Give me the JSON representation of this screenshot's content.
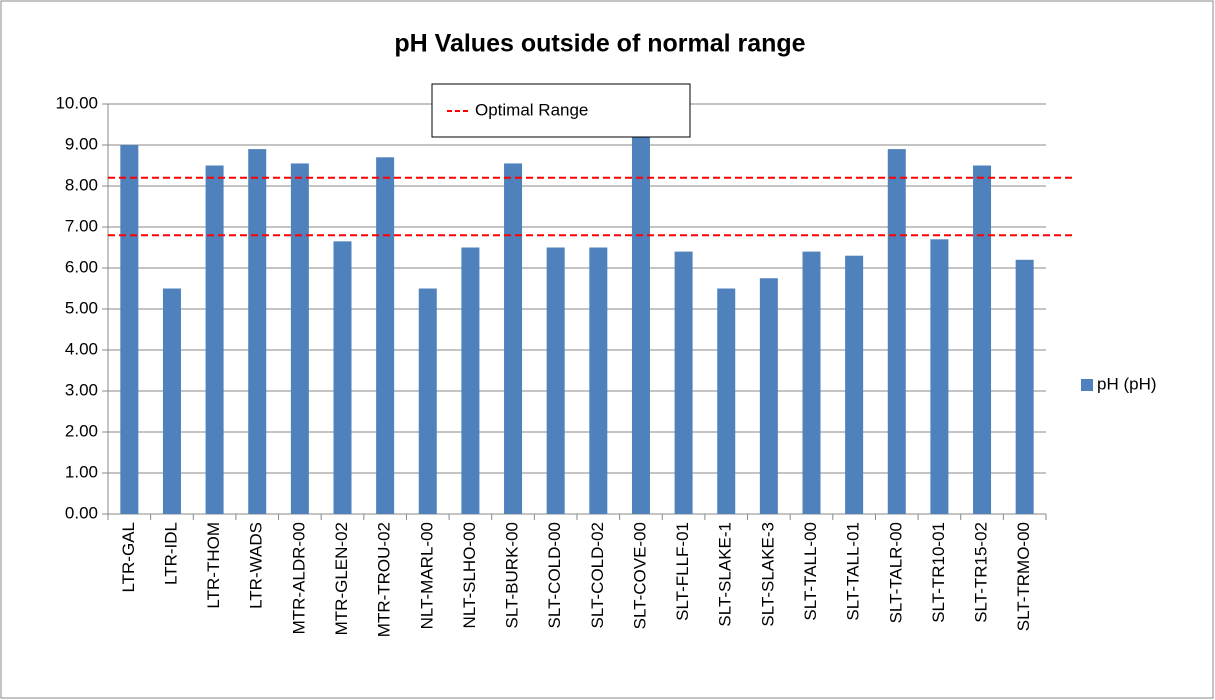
{
  "chart_data": {
    "type": "bar",
    "title": "pH Values outside of normal range",
    "categories": [
      "LTR-GAL",
      "LTR-IDL",
      "LTR-THOM",
      "LTR-WADS",
      "MTR-ALDR-00",
      "MTR-GLEN-02",
      "MTR-TROU-02",
      "NLT-MARL-00",
      "NLT-SLHO-00",
      "SLT-BURK-00",
      "SLT-COLD-00",
      "SLT-COLD-02",
      "SLT-COVE-00",
      "SLT-FLLF-01",
      "SLT-SLAKE-1",
      "SLT-SLAKE-3",
      "SLT-TALL-00",
      "SLT-TALL-01",
      "SLT-TALR-00",
      "SLT-TR10-01",
      "SLT-TR15-02",
      "SLT-TRMO-00"
    ],
    "series": [
      {
        "name": "pH (pH)",
        "color": "#4f81bd",
        "values": [
          9.0,
          5.5,
          8.5,
          8.9,
          8.55,
          6.65,
          8.7,
          5.5,
          6.5,
          8.55,
          6.5,
          6.5,
          9.2,
          6.4,
          5.5,
          5.75,
          6.4,
          6.3,
          8.9,
          6.7,
          8.5,
          6.2
        ]
      }
    ],
    "reference_lines": {
      "name": "Optimal Range",
      "color": "#ff0000",
      "values": [
        6.8,
        8.2
      ]
    },
    "ylim": [
      0,
      10
    ],
    "yticks": [
      {
        "value": 0,
        "label": "0.00"
      },
      {
        "value": 1,
        "label": "1.00"
      },
      {
        "value": 2,
        "label": "2.00"
      },
      {
        "value": 3,
        "label": "3.00"
      },
      {
        "value": 4,
        "label": "4.00"
      },
      {
        "value": 5,
        "label": "5.00"
      },
      {
        "value": 6,
        "label": "6.00"
      },
      {
        "value": 7,
        "label": "7.00"
      },
      {
        "value": 8,
        "label": "8.00"
      },
      {
        "value": 9,
        "label": "9.00"
      },
      {
        "value": 10,
        "label": "10.00"
      }
    ],
    "grid": true,
    "legend": "right"
  }
}
